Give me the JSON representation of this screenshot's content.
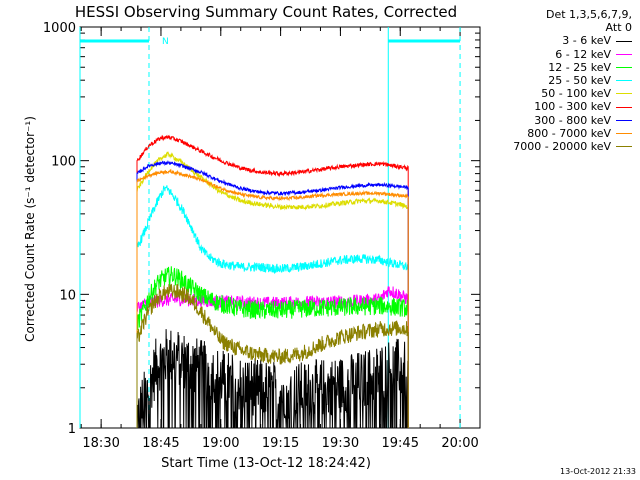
{
  "chart_data": {
    "type": "line",
    "title": "HESSI Observing Summary Count Rates, Corrected",
    "xlabel": "Start Time (13-Oct-12 18:24:42)",
    "ylabel": "Corrected Count Rate (s⁻¹ detector⁻¹)",
    "y_scale": "log",
    "xlim": [
      "18:24:42",
      "20:05:00"
    ],
    "ylim": [
      1,
      1000
    ],
    "x_ticks": [
      "18:30",
      "18:45",
      "19:00",
      "19:15",
      "19:30",
      "19:45",
      "20:00"
    ],
    "y_ticks": [
      "1",
      "10",
      "100",
      "1000"
    ],
    "grid": false,
    "legend_position": "right",
    "legend_header": [
      "Det 1,3,5,6,7,9,",
      "Att 0"
    ],
    "data_start": "18:39:00",
    "data_end": "19:47:00",
    "series": [
      {
        "name": "3 - 6 keV",
        "color": "#000000",
        "x": [
          "18:39",
          "18:42",
          "18:44",
          "18:46",
          "18:48",
          "18:50",
          "18:53",
          "18:56",
          "19:00",
          "19:05",
          "19:10",
          "19:15",
          "19:20",
          "19:25",
          "19:30",
          "19:35",
          "19:40",
          "19:43",
          "19:45",
          "19:47"
        ],
        "y": [
          1.2,
          2.0,
          3.0,
          3.4,
          3.5,
          3.3,
          3.0,
          2.7,
          2.4,
          2.1,
          2.0,
          1.9,
          1.9,
          2.0,
          2.1,
          2.3,
          2.6,
          2.9,
          2.8,
          2.6
        ]
      },
      {
        "name": "6 - 12 keV",
        "color": "#ff00ff",
        "x": [
          "18:39",
          "18:42",
          "18:45",
          "18:50",
          "18:55",
          "19:00",
          "19:05",
          "19:10",
          "19:15",
          "19:20",
          "19:25",
          "19:30",
          "19:35",
          "19:40",
          "19:42",
          "19:44",
          "19:46",
          "19:47"
        ],
        "y": [
          8.0,
          8.6,
          9.0,
          9.2,
          9.0,
          8.8,
          8.7,
          8.6,
          8.6,
          8.7,
          8.7,
          8.8,
          8.9,
          9.2,
          10.8,
          10.2,
          9.5,
          9.2
        ]
      },
      {
        "name": "12 - 25 keV",
        "color": "#00ff00",
        "x": [
          "18:39",
          "18:42",
          "18:44",
          "18:46",
          "18:48",
          "18:50",
          "18:53",
          "18:56",
          "19:00",
          "19:05",
          "19:10",
          "19:15",
          "19:20",
          "19:25",
          "19:30",
          "19:35",
          "19:40",
          "19:45",
          "19:47"
        ],
        "y": [
          6.0,
          9.5,
          12.0,
          13.5,
          14.0,
          13.0,
          11.0,
          9.5,
          8.5,
          7.8,
          7.6,
          7.6,
          7.8,
          7.9,
          8.0,
          8.1,
          8.2,
          8.0,
          7.8
        ]
      },
      {
        "name": "25 - 50 keV",
        "color": "#00ffff",
        "x": [
          "18:39",
          "18:41",
          "18:43",
          "18:45",
          "18:46",
          "18:47",
          "18:49",
          "18:51",
          "18:53",
          "18:55",
          "18:57",
          "19:00",
          "19:05",
          "19:10",
          "19:15",
          "19:20",
          "19:25",
          "19:30",
          "19:35",
          "19:40",
          "19:45",
          "19:47"
        ],
        "y": [
          22,
          30,
          42,
          56,
          62,
          60,
          50,
          40,
          30,
          22,
          19,
          17,
          16,
          16,
          15.5,
          16,
          17,
          18,
          18.5,
          18,
          16.5,
          16
        ]
      },
      {
        "name": "50 - 100 keV",
        "color": "#dddd00",
        "x": [
          "18:39",
          "18:42",
          "18:45",
          "18:47",
          "18:50",
          "18:55",
          "19:00",
          "19:05",
          "19:10",
          "19:15",
          "19:20",
          "19:25",
          "19:30",
          "19:35",
          "19:40",
          "19:45",
          "19:47"
        ],
        "y": [
          60,
          85,
          105,
          112,
          98,
          75,
          58,
          50,
          47,
          45,
          45,
          46,
          48,
          50,
          50,
          47,
          45
        ]
      },
      {
        "name": "100 - 300 keV",
        "color": "#ff0000",
        "x": [
          "18:39",
          "18:42",
          "18:45",
          "18:47",
          "18:50",
          "18:55",
          "19:00",
          "19:05",
          "19:10",
          "19:15",
          "19:20",
          "19:25",
          "19:30",
          "19:35",
          "19:40",
          "19:45",
          "19:47"
        ],
        "y": [
          100,
          130,
          148,
          150,
          140,
          118,
          100,
          88,
          82,
          80,
          82,
          86,
          90,
          93,
          95,
          90,
          88
        ]
      },
      {
        "name": "300 - 800 keV",
        "color": "#0000ff",
        "x": [
          "18:39",
          "18:42",
          "18:45",
          "18:47",
          "18:50",
          "18:55",
          "19:00",
          "19:05",
          "19:10",
          "19:15",
          "19:20",
          "19:25",
          "19:30",
          "19:35",
          "19:40",
          "19:45",
          "19:47"
        ],
        "y": [
          80,
          92,
          96,
          96,
          92,
          82,
          70,
          62,
          58,
          57,
          58,
          60,
          63,
          65,
          66,
          64,
          63
        ]
      },
      {
        "name": "800 - 7000 keV",
        "color": "#ff8c00",
        "x": [
          "18:39",
          "18:42",
          "18:45",
          "18:47",
          "18:50",
          "18:55",
          "19:00",
          "19:05",
          "19:10",
          "19:15",
          "19:20",
          "19:25",
          "19:30",
          "19:35",
          "19:40",
          "19:45",
          "19:47"
        ],
        "y": [
          70,
          78,
          82,
          83,
          80,
          72,
          62,
          56,
          53,
          52,
          53,
          55,
          56,
          57,
          57,
          55,
          54
        ]
      },
      {
        "name": "7000 - 20000 keV",
        "color": "#8b8000",
        "x": [
          "18:39",
          "18:41",
          "18:43",
          "18:45",
          "18:47",
          "18:49",
          "18:52",
          "18:55",
          "18:58",
          "19:00",
          "19:05",
          "19:10",
          "19:15",
          "19:20",
          "19:25",
          "19:30",
          "19:35",
          "19:40",
          "19:45",
          "19:47"
        ],
        "y": [
          4.5,
          6.5,
          8.5,
          10,
          10.5,
          10.5,
          9.5,
          7.5,
          5.5,
          4.5,
          3.8,
          3.5,
          3.4,
          3.6,
          4.2,
          4.8,
          5.2,
          5.5,
          5.6,
          5.5
        ]
      }
    ],
    "annotations": [
      {
        "text": "N",
        "x": "18:44"
      }
    ],
    "night_bars": [
      {
        "from": "18:24:42",
        "to": "18:42:00"
      },
      {
        "from": "19:42:00",
        "to": "20:00:00"
      }
    ],
    "vertical_lines": [
      {
        "x": "18:24:42",
        "style": "solid",
        "color": "#00ffff"
      },
      {
        "x": "18:42:00",
        "style": "dashed",
        "color": "#00ffff"
      },
      {
        "x": "19:42:00",
        "style": "solid",
        "color": "#00ffff"
      },
      {
        "x": "20:00:00",
        "style": "dashed",
        "color": "#00ffff"
      }
    ]
  },
  "timestamp": "13-Oct-2012 21:33"
}
